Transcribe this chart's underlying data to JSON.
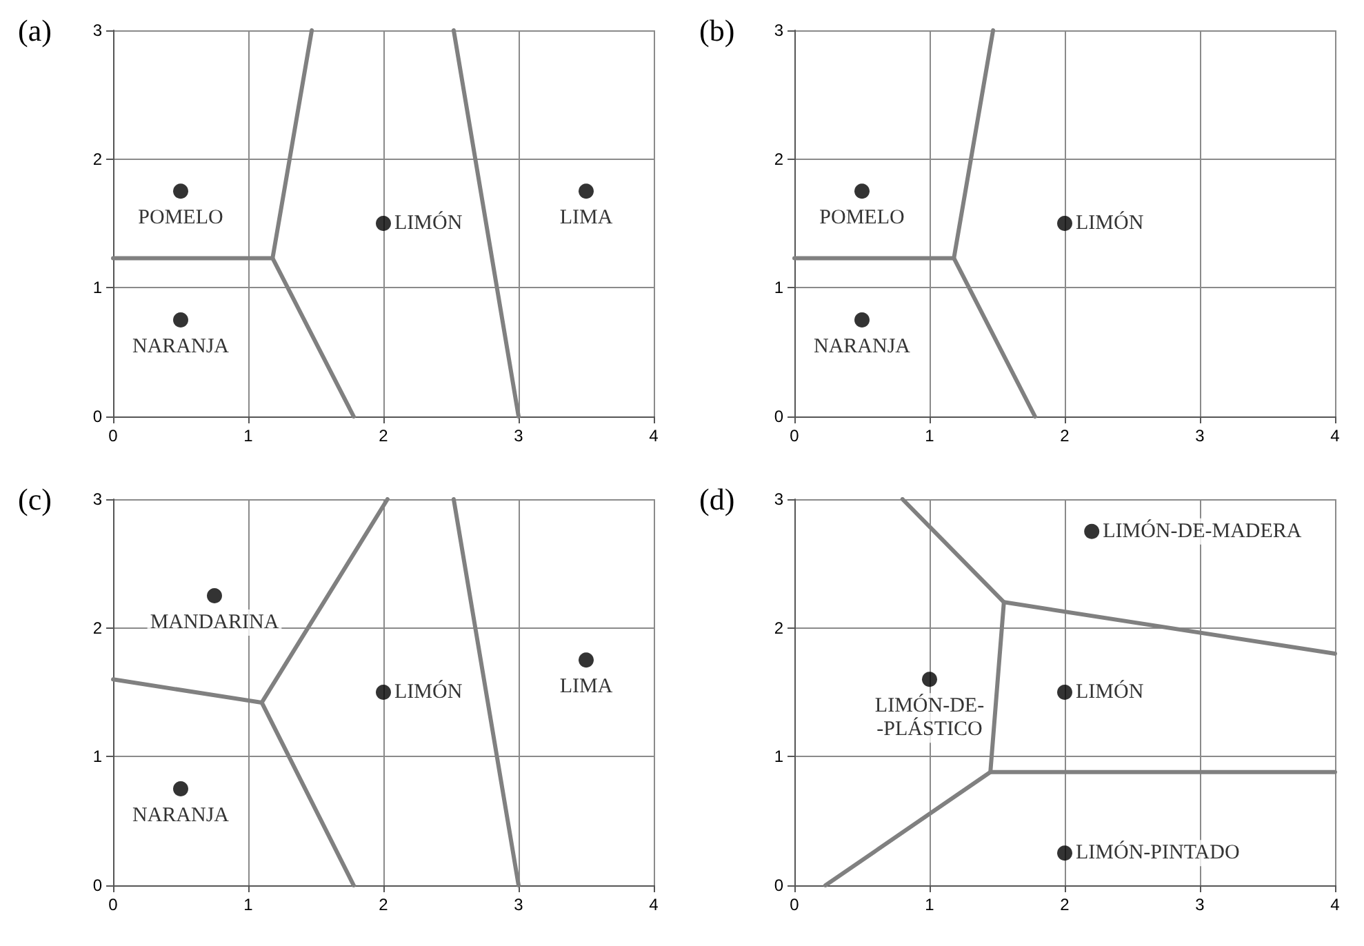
{
  "chart_data": [
    {
      "type": "scatter",
      "title": "(a)",
      "xlim": [
        0,
        4
      ],
      "ylim": [
        0,
        3
      ],
      "xticks": [
        0,
        1,
        2,
        3,
        4
      ],
      "yticks": [
        0,
        1,
        2,
        3
      ],
      "grid": true,
      "series": [
        {
          "color": "#000000",
          "marker": "circle",
          "x": [
            0.5,
            0.5,
            2,
            3.5
          ],
          "values": [
            1.75,
            0.75,
            1.5,
            1.75
          ]
        },
        {
          "type": "line",
          "color": "#808080",
          "marker": "none",
          "x": [
            0,
            1.18,
            1.47
          ],
          "values": [
            1.23,
            1.23,
            3
          ]
        },
        {
          "type": "line",
          "color": "#808080",
          "marker": "none",
          "x": [
            1.18,
            1.78
          ],
          "values": [
            1.23,
            0
          ]
        },
        {
          "type": "line",
          "color": "#808080",
          "marker": "none",
          "x": [
            2.52,
            3
          ],
          "values": [
            3,
            0
          ]
        }
      ],
      "annotations": [
        {
          "text": "POMELO",
          "x": 0.5,
          "y": 1.75
        },
        {
          "text": "NARANJA",
          "x": 0.5,
          "y": 0.75
        },
        {
          "text": "LIMÓN",
          "x": 2,
          "y": 1.5
        },
        {
          "text": "LIMA",
          "x": 3.5,
          "y": 1.75
        }
      ]
    },
    {
      "type": "scatter",
      "title": "(b)",
      "xlim": [
        0,
        4
      ],
      "ylim": [
        0,
        3
      ],
      "xticks": [
        0,
        1,
        2,
        3,
        4
      ],
      "yticks": [
        0,
        1,
        2,
        3
      ],
      "grid": true,
      "series": [
        {
          "color": "#000000",
          "marker": "circle",
          "x": [
            0.5,
            0.5,
            2
          ],
          "values": [
            1.75,
            0.75,
            1.5
          ]
        },
        {
          "type": "line",
          "color": "#808080",
          "marker": "none",
          "x": [
            0,
            1.18,
            1.47
          ],
          "values": [
            1.23,
            1.23,
            3
          ]
        },
        {
          "type": "line",
          "color": "#808080",
          "marker": "none",
          "x": [
            1.18,
            1.78
          ],
          "values": [
            1.23,
            0
          ]
        }
      ],
      "annotations": [
        {
          "text": "POMELO",
          "x": 0.5,
          "y": 1.75
        },
        {
          "text": "NARANJA",
          "x": 0.5,
          "y": 0.75
        },
        {
          "text": "LIMÓN",
          "x": 2,
          "y": 1.5
        }
      ]
    },
    {
      "type": "scatter",
      "title": "(c)",
      "xlim": [
        0,
        4
      ],
      "ylim": [
        0,
        3
      ],
      "xticks": [
        0,
        1,
        2,
        3,
        4
      ],
      "yticks": [
        0,
        1,
        2,
        3
      ],
      "grid": true,
      "series": [
        {
          "color": "#000000",
          "marker": "circle",
          "x": [
            0.75,
            0.5,
            2,
            3.5
          ],
          "values": [
            2.25,
            0.75,
            1.5,
            1.75
          ]
        },
        {
          "type": "line",
          "color": "#808080",
          "marker": "none",
          "x": [
            0,
            1.1,
            2.03
          ],
          "values": [
            1.6,
            1.42,
            3
          ]
        },
        {
          "type": "line",
          "color": "#808080",
          "marker": "none",
          "x": [
            1.1,
            1.78
          ],
          "values": [
            1.42,
            0
          ]
        },
        {
          "type": "line",
          "color": "#808080",
          "marker": "none",
          "x": [
            2.52,
            3
          ],
          "values": [
            3,
            0
          ]
        }
      ],
      "annotations": [
        {
          "text": "MANDARINA",
          "x": 0.75,
          "y": 2.25
        },
        {
          "text": "NARANJA",
          "x": 0.5,
          "y": 0.75
        },
        {
          "text": "LIMÓN",
          "x": 2,
          "y": 1.5
        },
        {
          "text": "LIMA",
          "x": 3.5,
          "y": 1.75
        }
      ]
    },
    {
      "type": "scatter",
      "title": "(d)",
      "xlim": [
        0,
        4
      ],
      "ylim": [
        0,
        3
      ],
      "xticks": [
        0,
        1,
        2,
        3,
        4
      ],
      "yticks": [
        0,
        1,
        2,
        3
      ],
      "grid": true,
      "series": [
        {
          "color": "#000000",
          "marker": "circle",
          "x": [
            1,
            2,
            2.2,
            2
          ],
          "values": [
            1.6,
            1.5,
            2.75,
            0.25
          ]
        },
        {
          "type": "line",
          "color": "#808080",
          "marker": "none",
          "x": [
            0.8,
            1.55,
            4
          ],
          "values": [
            3,
            2.2,
            1.8
          ]
        },
        {
          "type": "line",
          "color": "#808080",
          "marker": "none",
          "x": [
            1.55,
            1.45,
            0.23
          ],
          "values": [
            2.2,
            0.88,
            0
          ]
        },
        {
          "type": "line",
          "color": "#808080",
          "marker": "none",
          "x": [
            1.45,
            4
          ],
          "values": [
            0.88,
            0.88
          ]
        }
      ],
      "annotations": [
        {
          "text": "LIMÓN-DE-\n-PLÁSTICO",
          "x": 1,
          "y": 1.6
        },
        {
          "text": "LIMÓN",
          "x": 2,
          "y": 1.5
        },
        {
          "text": "LIMÓN-DE-MADERA",
          "x": 2.2,
          "y": 2.75
        },
        {
          "text": "LIMÓN-PINTADO",
          "x": 2,
          "y": 0.25
        }
      ]
    }
  ]
}
